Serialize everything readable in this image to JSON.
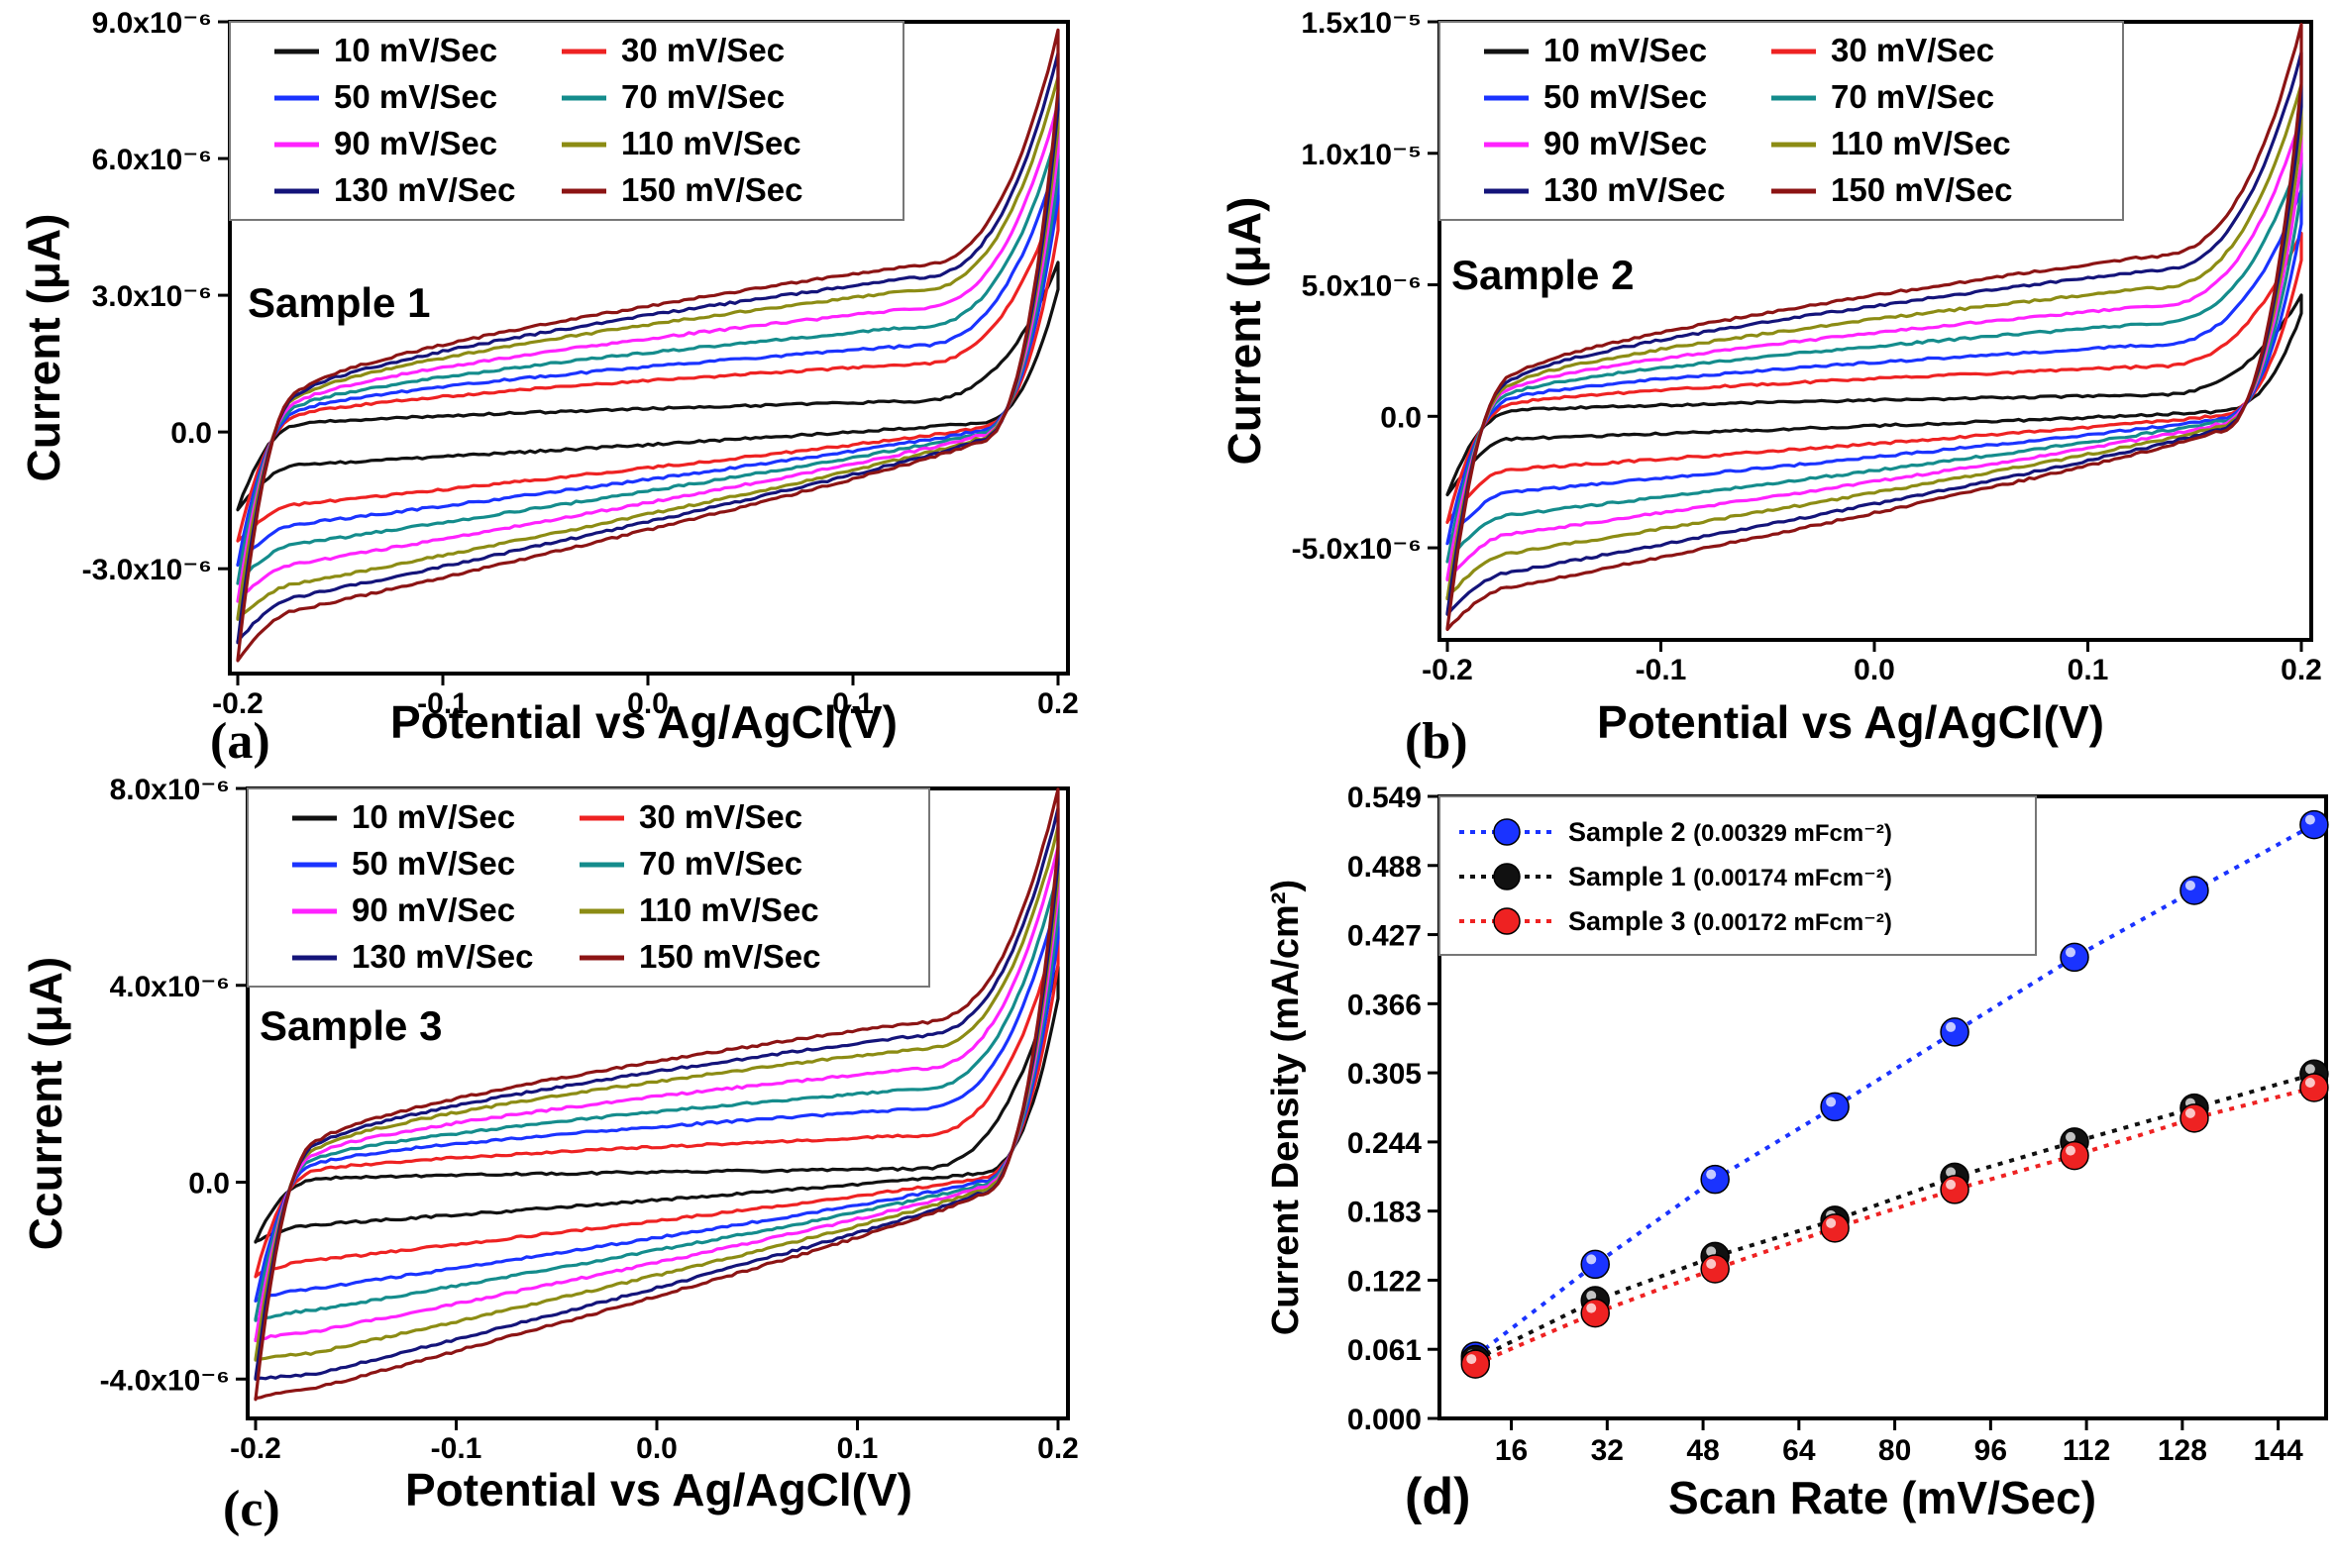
{
  "chart_data": [
    {
      "id": "a",
      "type": "line",
      "panel_label": "(a)",
      "annotation": "Sample 1",
      "xlabel": "Potential vs Ag/AgCl(V)",
      "ylabel": "Current (μA)",
      "xlim": [
        -0.2,
        0.2
      ],
      "ylim": [
        -5.3e-06,
        9e-06
      ],
      "xticks": [
        -0.2,
        -0.1,
        0.0,
        0.1,
        0.2
      ],
      "xtick_labels": [
        "-0.2",
        "-0.1",
        "0.0",
        "0.1",
        "0.2"
      ],
      "yticks": [
        -3e-06,
        0.0,
        3e-06,
        6e-06,
        9e-06
      ],
      "ytick_labels": [
        "-3.0x10⁻⁶",
        "0.0",
        "3.0x10⁻⁶",
        "6.0x10⁻⁶",
        "9.0x10⁻⁶"
      ],
      "legend": "top",
      "series": [
        {
          "name": "10 mV/Sec",
          "color": "#111111",
          "mid_forward": 5e-07,
          "mid_reverse": -5e-07,
          "start_min": -1.7e-06,
          "end_max": 3.7e-06
        },
        {
          "name": "30 mV/Sec",
          "color": "#ee2222",
          "mid_forward": 1.1e-06,
          "mid_reverse": -1.1e-06,
          "start_min": -2.4e-06,
          "end_max": 5.2e-06
        },
        {
          "name": "50 mV/Sec",
          "color": "#1a33ff",
          "mid_forward": 1.4e-06,
          "mid_reverse": -1.4e-06,
          "start_min": -2.9e-06,
          "end_max": 6e-06
        },
        {
          "name": "70 mV/Sec",
          "color": "#148c8c",
          "mid_forward": 1.7e-06,
          "mid_reverse": -1.7e-06,
          "start_min": -3.3e-06,
          "end_max": 6.6e-06
        },
        {
          "name": "90 mV/Sec",
          "color": "#ff22ff",
          "mid_forward": 2e-06,
          "mid_reverse": -2e-06,
          "start_min": -3.7e-06,
          "end_max": 7.2e-06
        },
        {
          "name": "110 mV/Sec",
          "color": "#8c8c14",
          "mid_forward": 2.3e-06,
          "mid_reverse": -2.3e-06,
          "start_min": -4.1e-06,
          "end_max": 7.8e-06
        },
        {
          "name": "130 mV/Sec",
          "color": "#14147a",
          "mid_forward": 2.5e-06,
          "mid_reverse": -2.5e-06,
          "start_min": -4.6e-06,
          "end_max": 8.3e-06
        },
        {
          "name": "150 mV/Sec",
          "color": "#8c1414",
          "mid_forward": 2.7e-06,
          "mid_reverse": -2.7e-06,
          "start_min": -5e-06,
          "end_max": 8.8e-06
        }
      ]
    },
    {
      "id": "b",
      "type": "line",
      "panel_label": "(b)",
      "annotation": "Sample 2",
      "xlabel": "Potential vs Ag/AgCl(V)",
      "ylabel": "Current (μA)",
      "xlim": [
        -0.2,
        0.2
      ],
      "ylim": [
        -8.5e-06,
        1.5e-05
      ],
      "xticks": [
        -0.2,
        -0.1,
        0.0,
        0.1,
        0.2
      ],
      "xtick_labels": [
        "-0.2",
        "-0.1",
        "0.0",
        "0.1",
        "0.2"
      ],
      "yticks": [
        -5e-06,
        0.0,
        5e-06,
        1e-05,
        1.5e-05
      ],
      "ytick_labels": [
        "-5.0x10⁻⁶",
        "0.0",
        "5.0x10⁻⁶",
        "1.0x10⁻⁵",
        "1.5x10⁻⁵"
      ],
      "legend": "top",
      "series": [
        {
          "name": "10 mV/Sec",
          "color": "#111111",
          "mid_forward": 6e-07,
          "mid_reverse": -6e-07,
          "start_min": -3e-06,
          "end_max": 4.6e-06
        },
        {
          "name": "30 mV/Sec",
          "color": "#ee2222",
          "mid_forward": 1.4e-06,
          "mid_reverse": -1.4e-06,
          "start_min": -4e-06,
          "end_max": 7e-06
        },
        {
          "name": "50 mV/Sec",
          "color": "#1a33ff",
          "mid_forward": 2e-06,
          "mid_reverse": -2e-06,
          "start_min": -4.8e-06,
          "end_max": 8.6e-06
        },
        {
          "name": "70 mV/Sec",
          "color": "#148c8c",
          "mid_forward": 2.6e-06,
          "mid_reverse": -2.6e-06,
          "start_min": -5.5e-06,
          "end_max": 1e-05
        },
        {
          "name": "90 mV/Sec",
          "color": "#ff22ff",
          "mid_forward": 3.1e-06,
          "mid_reverse": -3.1e-06,
          "start_min": -6.2e-06,
          "end_max": 1.14e-05
        },
        {
          "name": "110 mV/Sec",
          "color": "#8c8c14",
          "mid_forward": 3.6e-06,
          "mid_reverse": -3.6e-06,
          "start_min": -6.9e-06,
          "end_max": 1.26e-05
        },
        {
          "name": "130 mV/Sec",
          "color": "#14147a",
          "mid_forward": 4.1e-06,
          "mid_reverse": -4.1e-06,
          "start_min": -7.5e-06,
          "end_max": 1.38e-05
        },
        {
          "name": "150 mV/Sec",
          "color": "#8c1414",
          "mid_forward": 4.5e-06,
          "mid_reverse": -4.5e-06,
          "start_min": -8.1e-06,
          "end_max": 1.49e-05
        }
      ]
    },
    {
      "id": "c",
      "type": "line",
      "panel_label": "(c)",
      "annotation": "Sample 3",
      "xlabel": "Potential vs Ag/AgCl(V)",
      "ylabel": "Ccurrent (μA)",
      "xlim": [
        -0.2,
        0.2
      ],
      "ylim": [
        -4.8e-06,
        8e-06
      ],
      "xticks": [
        -0.2,
        -0.1,
        0.0,
        0.1,
        0.2
      ],
      "xtick_labels": [
        "-0.2",
        "-0.1",
        "0.0",
        "0.1",
        "0.2"
      ],
      "yticks": [
        -4e-06,
        0.0,
        4e-06,
        8e-06
      ],
      "ytick_labels": [
        "-4.0x10⁻⁶",
        "0.0",
        "4.0x10⁻⁶",
        "8.0x10⁻⁶"
      ],
      "legend": "top",
      "series": [
        {
          "name": "10 mV/Sec",
          "color": "#111111",
          "mid_forward": 2e-07,
          "mid_reverse": -6e-07,
          "start_min": -1.2e-06,
          "end_max": 4.4e-06
        },
        {
          "name": "30 mV/Sec",
          "color": "#ee2222",
          "mid_forward": 7e-07,
          "mid_reverse": -1.1e-06,
          "start_min": -1.9e-06,
          "end_max": 5.2e-06
        },
        {
          "name": "50 mV/Sec",
          "color": "#1a33ff",
          "mid_forward": 1.1e-06,
          "mid_reverse": -1.5e-06,
          "start_min": -2.4e-06,
          "end_max": 5.8e-06
        },
        {
          "name": "70 mV/Sec",
          "color": "#148c8c",
          "mid_forward": 1.4e-06,
          "mid_reverse": -1.8e-06,
          "start_min": -2.8e-06,
          "end_max": 6.3e-06
        },
        {
          "name": "90 mV/Sec",
          "color": "#ff22ff",
          "mid_forward": 1.7e-06,
          "mid_reverse": -2.1e-06,
          "start_min": -3.2e-06,
          "end_max": 6.8e-06
        },
        {
          "name": "110 mV/Sec",
          "color": "#8c8c14",
          "mid_forward": 2e-06,
          "mid_reverse": -2.4e-06,
          "start_min": -3.6e-06,
          "end_max": 7.2e-06
        },
        {
          "name": "130 mV/Sec",
          "color": "#14147a",
          "mid_forward": 2.2e-06,
          "mid_reverse": -2.7e-06,
          "start_min": -4e-06,
          "end_max": 7.6e-06
        },
        {
          "name": "150 mV/Sec",
          "color": "#8c1414",
          "mid_forward": 2.4e-06,
          "mid_reverse": -2.9e-06,
          "start_min": -4.4e-06,
          "end_max": 8e-06
        }
      ]
    },
    {
      "id": "d",
      "type": "scatter",
      "panel_label": "(d)",
      "xlabel": "Scan Rate (mV/Sec)",
      "ylabel": "Current Density (mA/cm²)",
      "xlim": [
        4,
        152
      ],
      "ylim": [
        0.0,
        0.549
      ],
      "xticks": [
        16,
        32,
        48,
        64,
        80,
        96,
        112,
        128,
        144
      ],
      "xtick_labels": [
        "16",
        "32",
        "48",
        "64",
        "80",
        "96",
        "112",
        "128",
        "144"
      ],
      "yticks": [
        0.0,
        0.061,
        0.122,
        0.183,
        0.244,
        0.305,
        0.366,
        0.427,
        0.488,
        0.549
      ],
      "ytick_labels": [
        "0.000",
        "0.061",
        "0.122",
        "0.183",
        "0.244",
        "0.305",
        "0.366",
        "0.427",
        "0.488",
        "0.549"
      ],
      "legend": "top-left",
      "x": [
        10,
        30,
        50,
        70,
        90,
        110,
        130,
        150
      ],
      "series": [
        {
          "name": "Sample 2",
          "note": "(0.00329 mFcm⁻²)",
          "color": "#1a33ff",
          "values": [
            0.055,
            0.136,
            0.211,
            0.275,
            0.341,
            0.407,
            0.466,
            0.524
          ]
        },
        {
          "name": "Sample 1",
          "note": "(0.00174 mFcm⁻²)",
          "color": "#111111",
          "values": [
            0.052,
            0.104,
            0.143,
            0.175,
            0.213,
            0.244,
            0.274,
            0.304
          ]
        },
        {
          "name": "Sample 3",
          "note": "(0.00172 mFcm⁻²)",
          "color": "#ee2222",
          "values": [
            0.048,
            0.093,
            0.132,
            0.168,
            0.202,
            0.232,
            0.265,
            0.292
          ]
        }
      ]
    }
  ]
}
